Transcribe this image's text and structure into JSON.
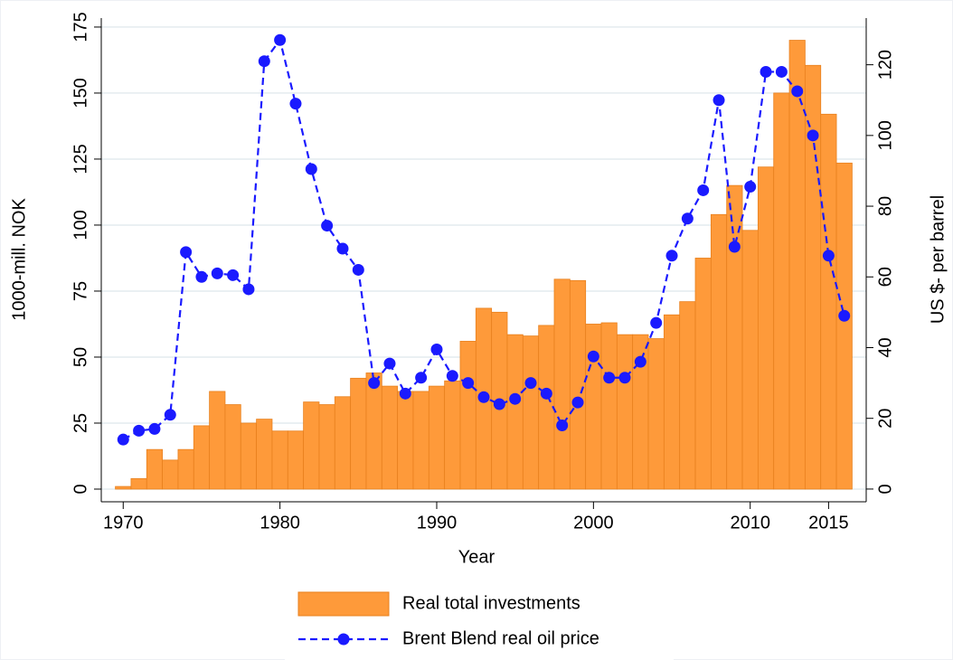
{
  "chart_data": {
    "type": "combo",
    "x_label": "Year",
    "y_label": "1000-mill. NOK",
    "y2_label": "US $- per barrel",
    "x": [
      1970,
      1971,
      1972,
      1973,
      1974,
      1975,
      1976,
      1977,
      1978,
      1979,
      1980,
      1981,
      1982,
      1983,
      1984,
      1985,
      1986,
      1987,
      1988,
      1989,
      1990,
      1991,
      1992,
      1993,
      1994,
      1995,
      1996,
      1997,
      1998,
      1999,
      2000,
      2001,
      2002,
      2003,
      2004,
      2005,
      2006,
      2007,
      2008,
      2009,
      2010,
      2011,
      2012,
      2013,
      2014,
      2015,
      2016
    ],
    "series": [
      {
        "name": "Real total investments",
        "type": "bar",
        "color": "#fe9a3a",
        "axis": "y",
        "values": [
          1,
          4,
          15,
          11,
          15,
          24,
          37,
          32,
          25,
          26.5,
          22,
          22,
          33,
          32,
          35,
          42,
          44,
          39,
          37,
          37,
          39,
          41,
          56,
          68.5,
          67,
          58.5,
          58,
          62,
          79.5,
          79,
          62.5,
          63,
          58.5,
          58.5,
          57,
          66,
          71,
          87.5,
          104,
          115,
          98,
          122,
          150,
          170,
          160.5,
          142,
          123.5
        ]
      },
      {
        "name": "Brent Blend real oil price",
        "type": "line",
        "color": "#1a1aff",
        "axis": "y2",
        "values": [
          14,
          16.5,
          17,
          21,
          67,
          60,
          61,
          60.5,
          56.5,
          121,
          127,
          109,
          90.5,
          74.5,
          68,
          62,
          30,
          35.5,
          27,
          31.5,
          39.5,
          32,
          30,
          26,
          24,
          25.5,
          30,
          27,
          18,
          24.5,
          37.5,
          31.5,
          31.5,
          36,
          47,
          66,
          76.5,
          84.5,
          110,
          68.5,
          85.5,
          118,
          118,
          112.5,
          100,
          66,
          49
        ]
      }
    ],
    "xlim": [
      1968.6,
      2017.4
    ],
    "xticks": [
      1970,
      1980,
      1990,
      2000,
      2010,
      2015
    ],
    "ylim": [
      -4.8,
      178.4
    ],
    "yticks": [
      0,
      25,
      50,
      75,
      100,
      125,
      150,
      175
    ],
    "y2lim": [
      -3.6,
      133.2
    ],
    "y2ticks": [
      0,
      20,
      40,
      60,
      80,
      100,
      120
    ],
    "grid": true,
    "legend": "bottom"
  }
}
